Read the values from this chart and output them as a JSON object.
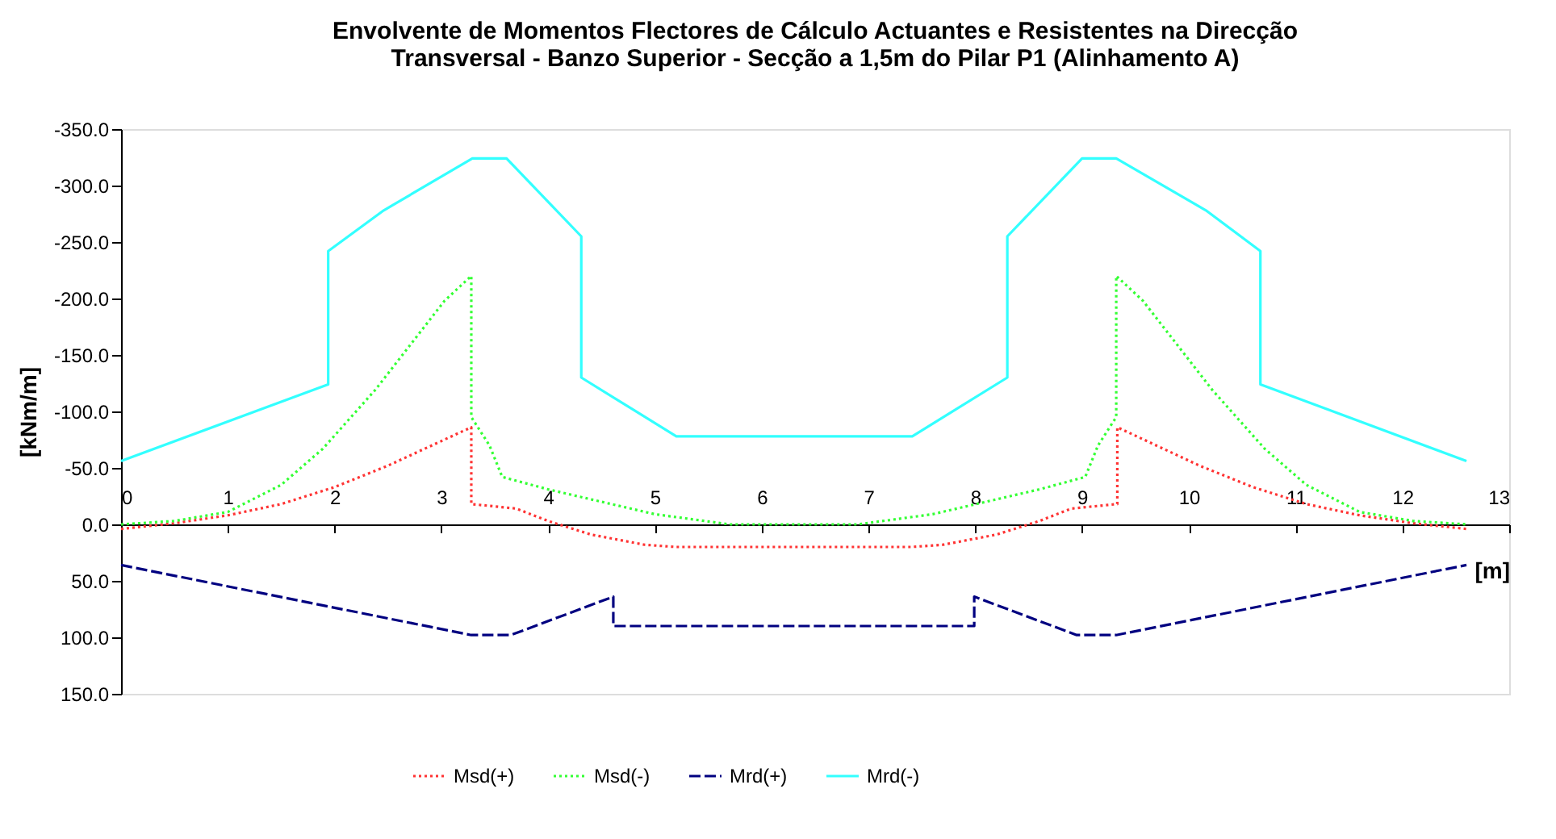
{
  "chart_data": {
    "type": "line",
    "title": "Envolvente de Momentos Flectores de Cálculo Actuantes e Resistentes na Direcção\nTransversal - Banzo Superior - Secção a 1,5m do Pilar P1  (Alinhamento A)",
    "xlabel": "[m]",
    "ylabel": "[kNm/m]",
    "xlim": [
      0,
      13
    ],
    "xticks": [
      0,
      1,
      2,
      3,
      4,
      5,
      6,
      7,
      8,
      9,
      10,
      11,
      12,
      13
    ],
    "ylim": [
      150,
      -350
    ],
    "yticks": [
      {
        "value": -350,
        "label": "-350.0"
      },
      {
        "value": -300,
        "label": "-300.0"
      },
      {
        "value": -250,
        "label": "-250.0"
      },
      {
        "value": -200,
        "label": "-200.0"
      },
      {
        "value": -150,
        "label": "-150.0"
      },
      {
        "value": -100,
        "label": "-100.0"
      },
      {
        "value": -50,
        "label": "-50.0"
      },
      {
        "value": 0,
        "label": "0.0"
      },
      {
        "value": 50,
        "label": "50.0"
      },
      {
        "value": 100,
        "label": "100.0"
      },
      {
        "value": 150,
        "label": "150.0"
      }
    ],
    "grid": false,
    "legend": "bottom",
    "marker": "none",
    "series": [
      {
        "name": "Msd(+)",
        "color": "#ff3333",
        "line_style": "dotted",
        "x": [
          0,
          0.5,
          1,
          1.5,
          2,
          2.5,
          3.28,
          3.28,
          3.7,
          4.0,
          4.4,
          4.9,
          5.2,
          7.4,
          7.7,
          8.2,
          8.6,
          8.9,
          9.33,
          9.33,
          10.1,
          10.6,
          11.1,
          11.6,
          12.1,
          12.6
        ],
        "values": [
          4,
          -1,
          -8,
          -18,
          -33,
          -52,
          -86,
          -18,
          -14,
          -3,
          9,
          18,
          20,
          20,
          18,
          9,
          -3,
          -14,
          -18,
          -86,
          -52,
          -33,
          -18,
          -8,
          -1,
          4
        ]
      },
      {
        "name": "Msd(-)",
        "color": "#33ff33",
        "line_style": "dotted",
        "x": [
          0,
          0.5,
          1,
          1.5,
          1.89,
          2.38,
          3.03,
          3.28,
          3.28,
          3.45,
          3.57,
          4.0,
          4.5,
          5.0,
          5.7,
          6.9,
          7.6,
          8.1,
          8.6,
          9.03,
          9.15,
          9.32,
          9.32,
          9.57,
          10.22,
          10.71,
          11.1,
          11.6,
          12.1,
          12.6
        ],
        "values": [
          0,
          -3,
          -11,
          -35,
          -67,
          -119,
          -198,
          -220,
          -95,
          -70,
          -42,
          -31,
          -20,
          -9,
          0,
          0,
          -9,
          -20,
          -31,
          -42,
          -70,
          -95,
          -220,
          -198,
          -119,
          -67,
          -35,
          -11,
          -3,
          0
        ]
      },
      {
        "name": "Mrd(+)",
        "color": "#000080",
        "line_style": "dashed",
        "x": [
          0,
          3.28,
          3.65,
          4.61,
          4.61,
          7.99,
          7.99,
          8.95,
          9.32,
          12.6
        ],
        "values": [
          36,
          98,
          98,
          64,
          90,
          90,
          64,
          98,
          98,
          36
        ]
      },
      {
        "name": "Mrd(-)",
        "color": "#33ffff",
        "line_style": "solid",
        "x": [
          0,
          1.94,
          1.94,
          2.46,
          3.29,
          3.61,
          4.31,
          4.31,
          5.2,
          7.41,
          8.3,
          8.3,
          9.0,
          9.32,
          10.16,
          10.67,
          10.67,
          12.6
        ],
        "values": [
          -56,
          -124,
          -242,
          -278,
          -324,
          -324,
          -255,
          -130,
          -78,
          -78,
          -130,
          -255,
          -324,
          -324,
          -278,
          -242,
          -124,
          -56
        ]
      }
    ]
  }
}
